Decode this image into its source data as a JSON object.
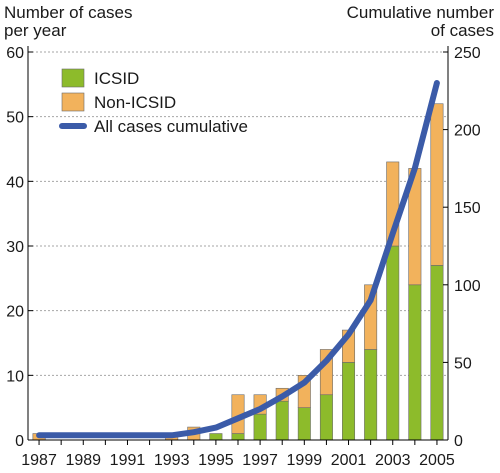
{
  "chart_data": {
    "type": "bar",
    "stacked": true,
    "left_axis_title": [
      "Number of cases",
      "per year"
    ],
    "right_axis_title": [
      "Cumulative number",
      "of cases"
    ],
    "categories": [
      1987,
      1988,
      1989,
      1990,
      1991,
      1992,
      1993,
      1994,
      1995,
      1996,
      1997,
      1998,
      1999,
      2000,
      2001,
      2002,
      2003,
      2004,
      2005
    ],
    "x_tick_labels": [
      "1987",
      "1989",
      "1991",
      "1993",
      "1995",
      "1997",
      "1999",
      "2001",
      "2003",
      "2005"
    ],
    "y_left": {
      "min": 0,
      "max": 60,
      "ticks": [
        0,
        10,
        20,
        30,
        40,
        50,
        60
      ]
    },
    "y_right": {
      "min": 0,
      "max": 250,
      "ticks": [
        0,
        50,
        100,
        150,
        200,
        250
      ]
    },
    "grid": true,
    "legend_position": "top-left",
    "series": [
      {
        "name": "ICSID",
        "kind": "bar",
        "axis": "left",
        "color": "#8dbb2b",
        "values": [
          0,
          0,
          0,
          0,
          0,
          0,
          0,
          0,
          1,
          1,
          4,
          6,
          5,
          7,
          12,
          14,
          30,
          24,
          27
        ]
      },
      {
        "name": "Non-ICSID",
        "kind": "bar",
        "axis": "left",
        "color": "#f2b25c",
        "values": [
          1,
          0,
          0,
          0,
          0,
          0,
          1,
          2,
          0,
          6,
          3,
          2,
          5,
          7,
          5,
          10,
          13,
          18,
          25
        ]
      },
      {
        "name": "All cases cumulative",
        "kind": "line",
        "axis": "right",
        "color": "#3b5ba8",
        "values": [
          3,
          3,
          3,
          3,
          3,
          3,
          3,
          5,
          8,
          14,
          20,
          28,
          37,
          51,
          68,
          90,
          133,
          175,
          230
        ]
      }
    ]
  }
}
